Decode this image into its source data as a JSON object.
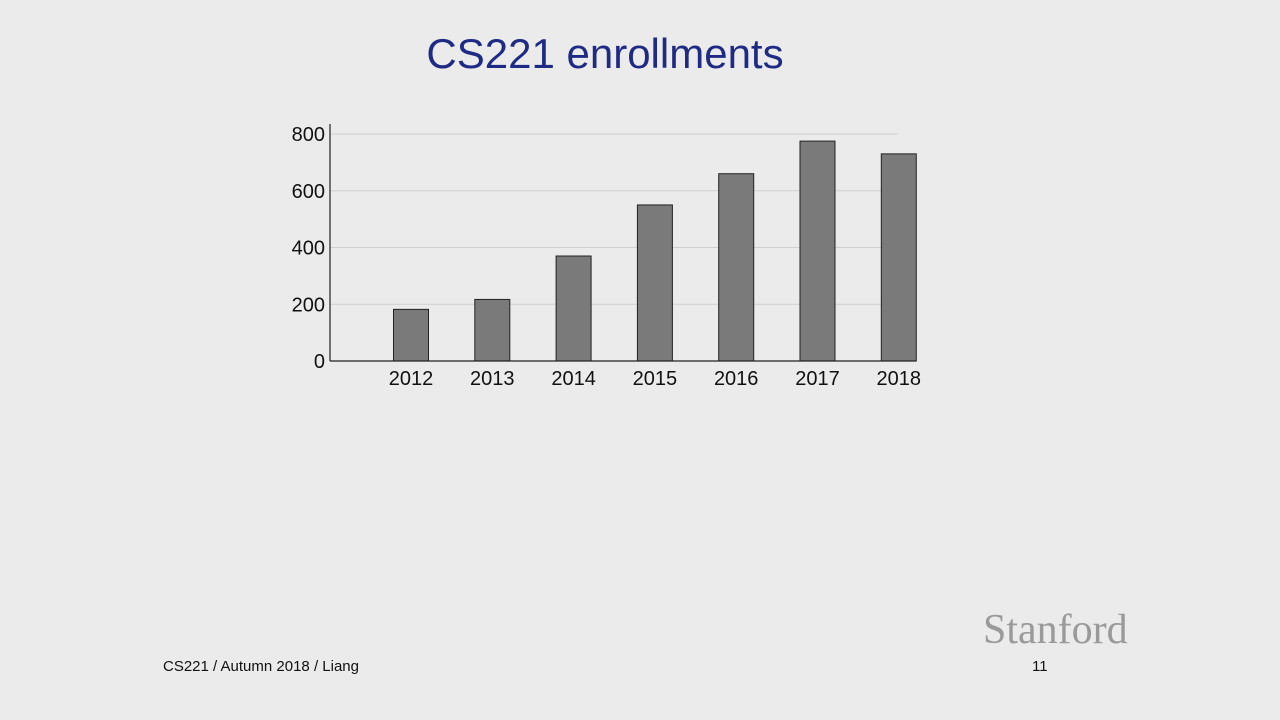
{
  "slide": {
    "title": "CS221 enrollments",
    "footer": "CS221 / Autumn 2018 / Liang",
    "logo_text": "Stanford",
    "page_number": "11"
  },
  "colors": {
    "title": "#1f2a85",
    "bar_fill": "#7a7a7a",
    "bar_stroke": "#222222",
    "gridline": "#cfcfcf",
    "background": "#ebebeb"
  },
  "chart_data": {
    "type": "bar",
    "title": "",
    "xlabel": "",
    "ylabel": "",
    "categories": [
      "2012",
      "2013",
      "2014",
      "2015",
      "2016",
      "2017",
      "2018"
    ],
    "values": [
      182,
      217,
      370,
      550,
      660,
      775,
      730
    ],
    "ylim": [
      0,
      800
    ],
    "yticks": [
      0,
      200,
      400,
      600,
      800
    ],
    "grid": true,
    "legend": "none"
  }
}
